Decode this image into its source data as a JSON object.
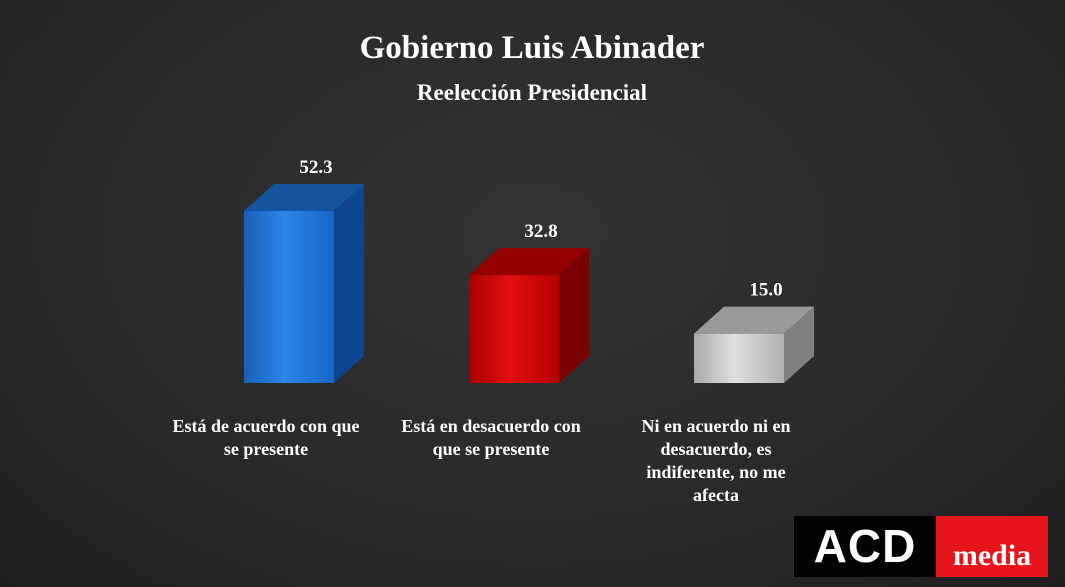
{
  "chart_data": {
    "type": "bar",
    "title": "Gobierno Luis Abinader",
    "subtitle": "Reelección Presidencial",
    "categories": [
      [
        "Está de acuerdo con que",
        "se presente"
      ],
      [
        "Está en desacuerdo con",
        "que se presente"
      ],
      [
        "Ni en acuerdo ni en",
        "desacuerdo, es",
        "indiferente, no me",
        "afecta"
      ]
    ],
    "values": [
      52.3,
      32.8,
      15.0
    ],
    "value_labels": [
      "52.3",
      "32.8",
      "15.0"
    ],
    "colors": [
      "#1f6fd0",
      "#c00000",
      "#bdbdbd"
    ],
    "side_colors": [
      "#0e4590",
      "#7a0000",
      "#808080"
    ],
    "top_colors": [
      "#14549e",
      "#940000",
      "#9a9a9a"
    ],
    "ylim": [
      0,
      55
    ],
    "grid": false,
    "style": "3d-bar"
  },
  "logo": {
    "left": "ACD",
    "right": "media"
  }
}
